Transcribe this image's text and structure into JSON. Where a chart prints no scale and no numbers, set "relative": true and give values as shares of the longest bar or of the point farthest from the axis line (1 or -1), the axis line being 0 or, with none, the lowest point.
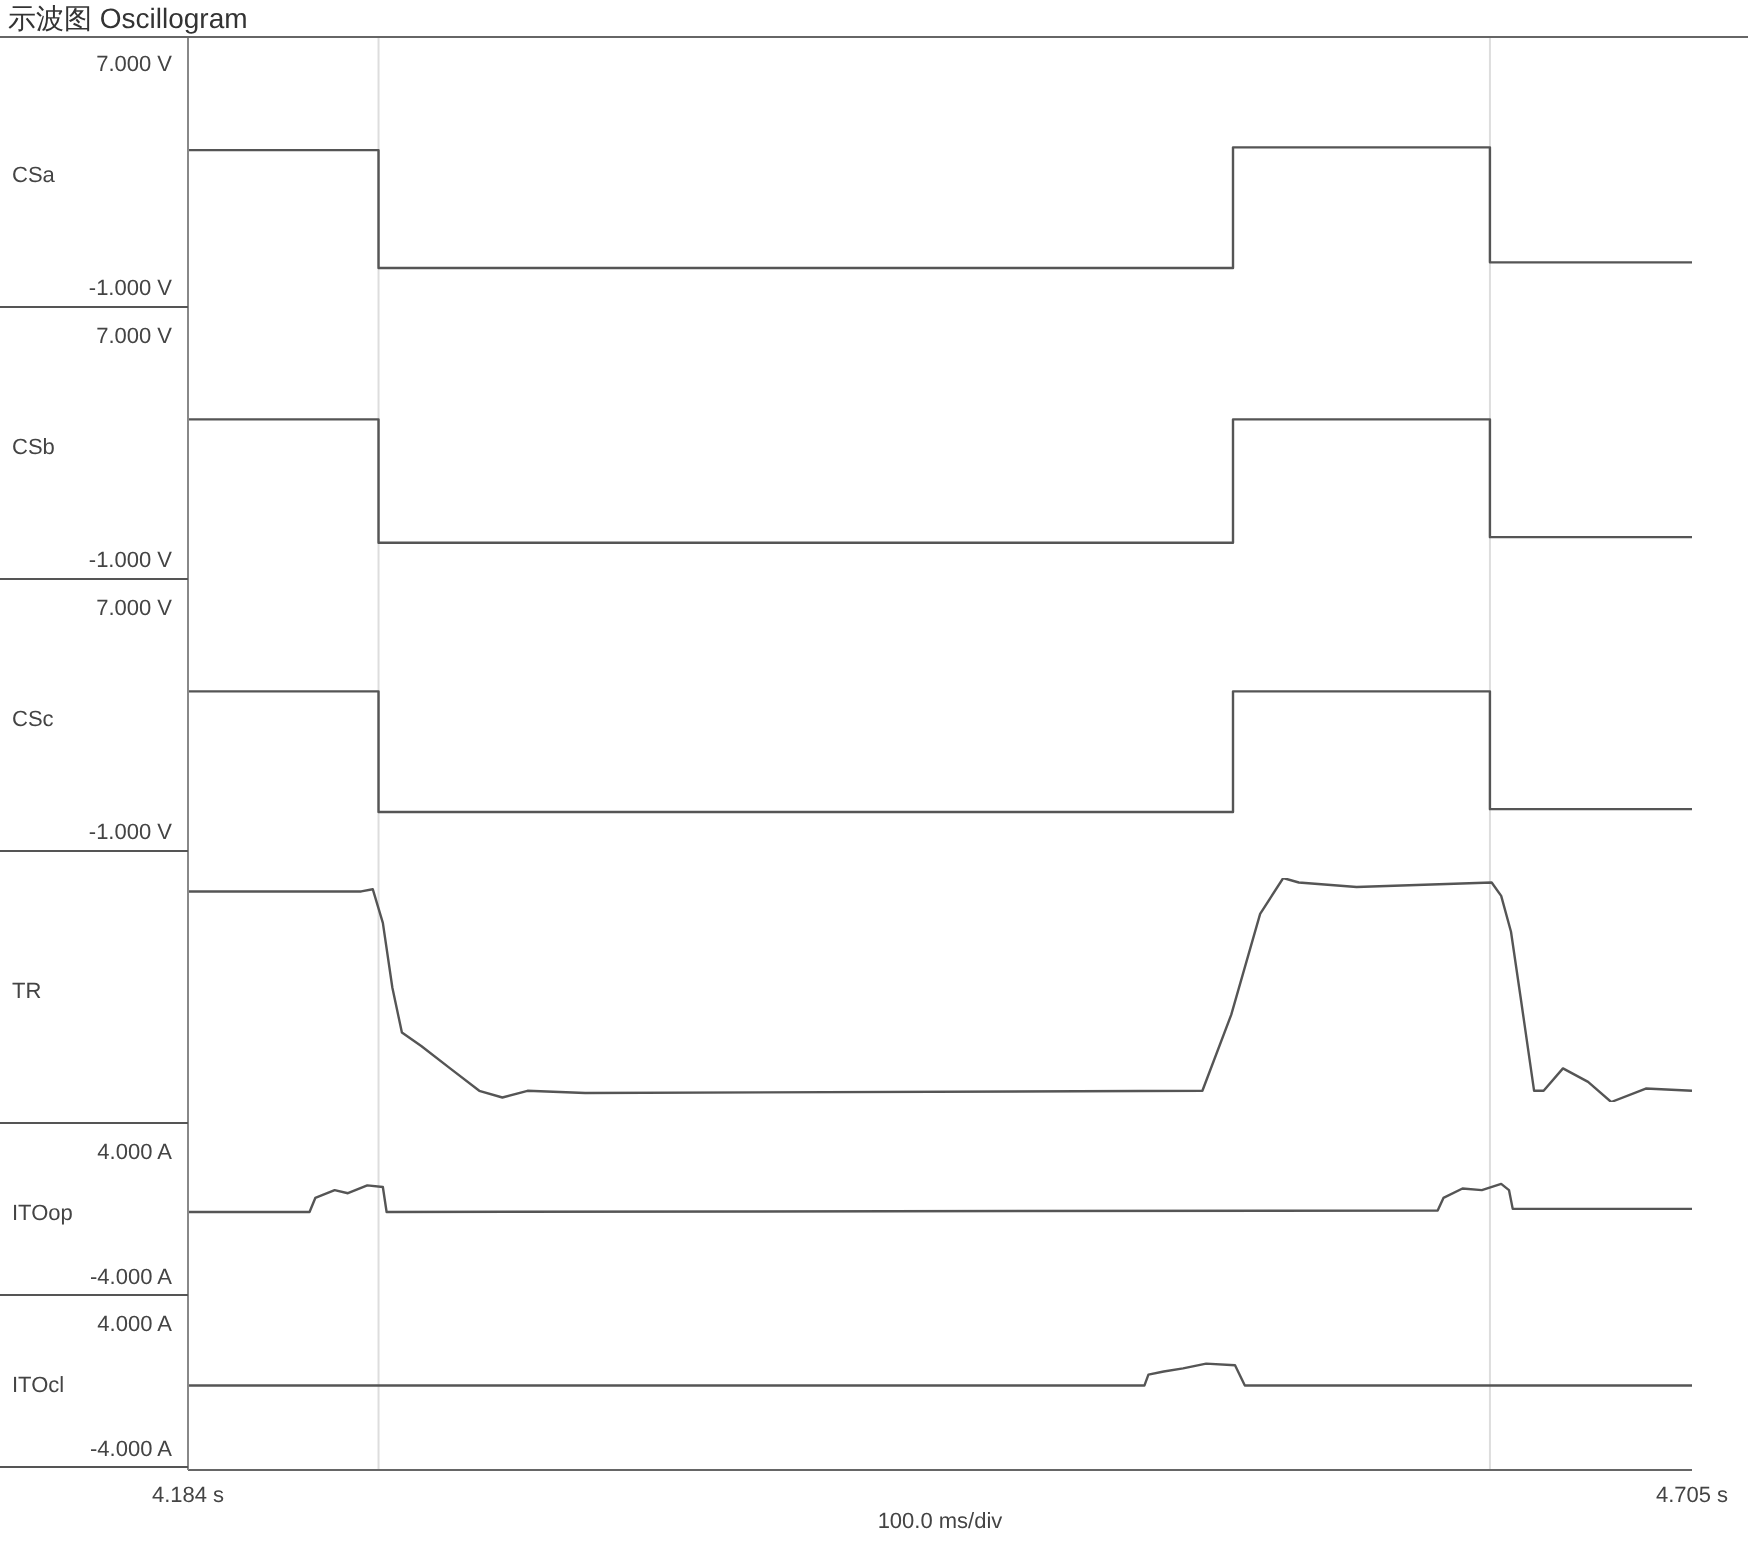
{
  "chart_data": [
    {
      "type": "line",
      "title": "示波图 Oscillogram",
      "ylabel": "CSa",
      "xlim": [
        4.184,
        4.705
      ],
      "ylim": [
        -1.8,
        7.9
      ],
      "yticks": [
        {
          "value": 7,
          "label": "7.000 V"
        },
        {
          "value": -1,
          "label": "-1.000 V"
        }
      ],
      "tick_labels": "y",
      "ref_lines": [
        {
          "axis": "x",
          "value": 4.25,
          "color": "#dddddd"
        },
        {
          "axis": "x",
          "value": 4.635,
          "color": "#dddddd"
        }
      ],
      "series": [
        {
          "color": "#555555",
          "x": [
            4.184,
            4.25,
            4.25,
            4.546,
            4.546,
            4.635,
            4.635,
            4.705
          ],
          "values": [
            3.9,
            3.9,
            -0.3,
            -0.3,
            4.0,
            4.0,
            -0.1,
            -0.1
          ]
        }
      ]
    },
    {
      "type": "line",
      "ylabel": "CSb",
      "xlim": [
        4.184,
        4.705
      ],
      "ylim": [
        -1.8,
        7.9
      ],
      "yticks": [
        {
          "value": 7,
          "label": "7.000 V"
        },
        {
          "value": -1,
          "label": "-1.000 V"
        }
      ],
      "tick_labels": "y",
      "ref_lines": [
        {
          "axis": "x",
          "value": 4.25,
          "color": "#dddddd"
        },
        {
          "axis": "x",
          "value": 4.635,
          "color": "#dddddd"
        }
      ],
      "series": [
        {
          "color": "#555555",
          "x": [
            4.184,
            4.25,
            4.25,
            4.546,
            4.546,
            4.635,
            4.635,
            4.705
          ],
          "values": [
            4.0,
            4.0,
            -0.4,
            -0.4,
            4.0,
            4.0,
            -0.2,
            -0.2
          ]
        }
      ]
    },
    {
      "type": "line",
      "ylabel": "CSc",
      "xlim": [
        4.184,
        4.705
      ],
      "ylim": [
        -1.8,
        7.9
      ],
      "yticks": [
        {
          "value": 7,
          "label": "7.000 V"
        },
        {
          "value": -1,
          "label": "-1.000 V"
        }
      ],
      "tick_labels": "y",
      "ref_lines": [
        {
          "axis": "x",
          "value": 4.25,
          "color": "#dddddd"
        },
        {
          "axis": "x",
          "value": 4.635,
          "color": "#dddddd"
        }
      ],
      "series": [
        {
          "color": "#555555",
          "x": [
            4.184,
            4.25,
            4.25,
            4.546,
            4.546,
            4.635,
            4.635,
            4.705
          ],
          "values": [
            4.0,
            4.0,
            -0.3,
            -0.3,
            4.0,
            4.0,
            -0.2,
            -0.2
          ]
        }
      ]
    },
    {
      "type": "line",
      "ylabel": "TR",
      "relative": true,
      "xlim": [
        4.184,
        4.705
      ],
      "tick_labels": false,
      "ref_lines": [
        {
          "axis": "x",
          "value": 4.25,
          "color": "#dddddd"
        },
        {
          "axis": "x",
          "value": 4.635,
          "color": "#dddddd"
        }
      ],
      "series": [
        {
          "color": "#555555",
          "x": [
            4.184,
            4.244,
            4.248,
            4.2515,
            4.2548,
            4.2581,
            4.2648,
            4.2748,
            4.2849,
            4.2929,
            4.3016,
            4.3216,
            4.5354,
            4.5454,
            4.5554,
            4.5634,
            4.5688,
            4.5888,
            4.6356,
            4.6389,
            4.6423,
            4.6456,
            4.6503,
            4.6536,
            4.6603,
            4.669,
            4.677,
            4.689,
            4.705
          ],
          "values": [
            0.94,
            0.94,
            0.95,
            0.8,
            0.51,
            0.31,
            0.25,
            0.15,
            0.05,
            0.02,
            0.05,
            0.04,
            0.05,
            0.39,
            0.84,
            1,
            0.98,
            0.96,
            0.98,
            0.92,
            0.76,
            0.47,
            0.05,
            0.05,
            0.15,
            0.09,
            0,
            0.06,
            0.05
          ]
        }
      ]
    },
    {
      "type": "line",
      "ylabel": "ITOop",
      "xlim": [
        4.184,
        4.705
      ],
      "ylim": [
        -5.4,
        5.6
      ],
      "yticks": [
        {
          "value": 4,
          "label": "4.000 A"
        },
        {
          "value": -4,
          "label": "-4.000 A"
        }
      ],
      "tick_labels": "y",
      "ref_lines": [
        {
          "axis": "x",
          "value": 4.25,
          "color": "#dddddd"
        },
        {
          "axis": "x",
          "value": 4.635,
          "color": "#dddddd"
        }
      ],
      "series": [
        {
          "color": "#555555",
          "x": [
            4.184,
            4.2261,
            4.2281,
            4.2348,
            4.2394,
            4.2461,
            4.2515,
            4.2528,
            4.6169,
            4.6189,
            4.6255,
            4.6322,
            4.6389,
            4.6416,
            4.6429,
            4.705
          ],
          "values": [
            0.1,
            0.1,
            1.0,
            1.5,
            1.3,
            1.8,
            1.7,
            0.1,
            0.2,
            1.0,
            1.6,
            1.5,
            1.9,
            1.5,
            0.3,
            0.3
          ]
        }
      ]
    },
    {
      "type": "line",
      "ylabel": "ITOcl",
      "xlim": [
        4.184,
        4.705
      ],
      "ylim": [
        -5.4,
        5.6
      ],
      "yticks": [
        {
          "value": 4,
          "label": "4.000 A"
        },
        {
          "value": -4,
          "label": "-4.000 A"
        }
      ],
      "xticks": [
        {
          "value": 4.184,
          "label": "4.184 s"
        },
        {
          "value": 4.705,
          "label": "4.705 s"
        }
      ],
      "annotations": [
        "100.0 ms/div"
      ],
      "ref_lines": [
        {
          "axis": "x",
          "value": 4.25,
          "color": "#dddddd"
        },
        {
          "axis": "x",
          "value": 4.635,
          "color": "#dddddd"
        }
      ],
      "series": [
        {
          "color": "#555555",
          "x": [
            4.184,
            4.5153,
            4.5167,
            4.522,
            4.5287,
            4.5367,
            4.5467,
            4.5501,
            4.705
          ],
          "values": [
            0,
            0,
            0.7,
            0.9,
            1.1,
            1.4,
            1.3,
            0,
            0
          ]
        }
      ]
    }
  ]
}
